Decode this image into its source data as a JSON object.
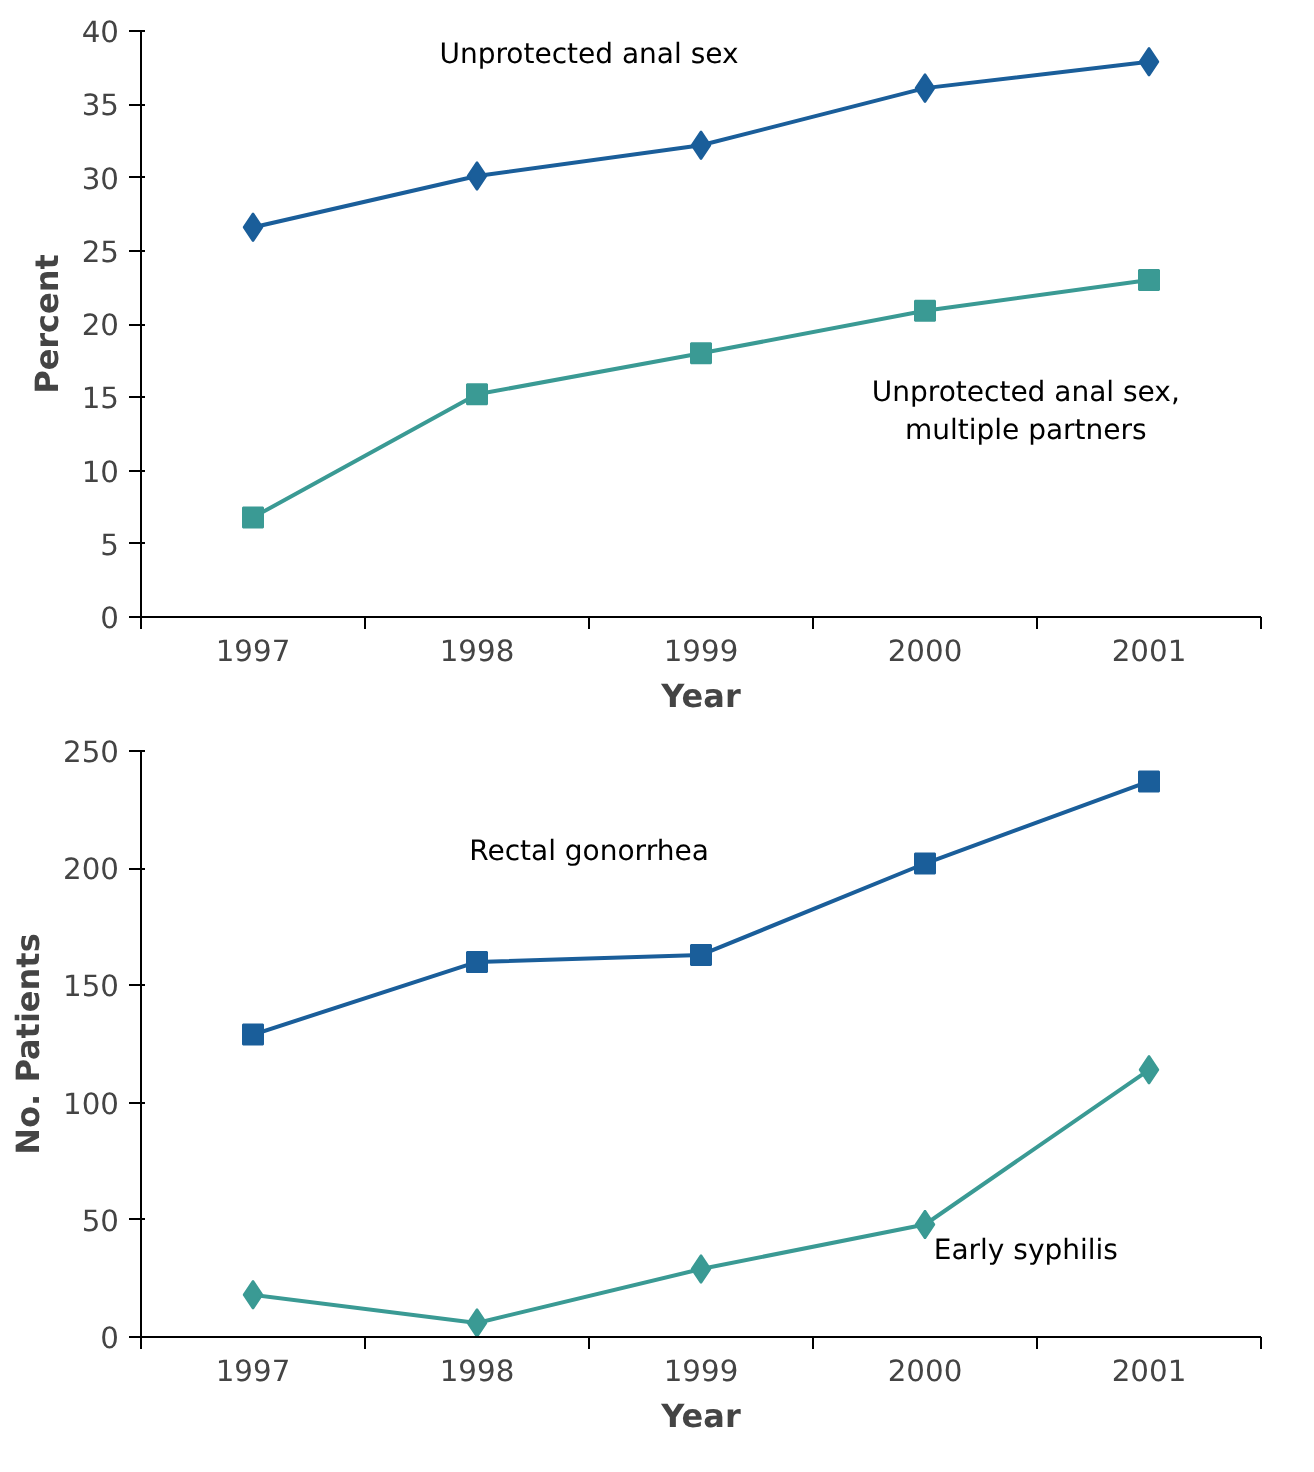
{
  "chart_data": [
    {
      "type": "line",
      "ylabel": "Percent",
      "xlabel": "Year",
      "categories": [
        "1997",
        "1998",
        "1999",
        "2000",
        "2001"
      ],
      "ylim": [
        0,
        40
      ],
      "yticks": [
        0,
        5,
        10,
        15,
        20,
        25,
        30,
        35,
        40
      ],
      "grid": false,
      "series": [
        {
          "name": "Unprotected anal sex",
          "color": "#1a5e9a",
          "marker": "diamond",
          "values": [
            26.6,
            30.1,
            32.2,
            36.1,
            37.9
          ]
        },
        {
          "name": "Unprotected anal sex, multiple partners",
          "color": "#3a9a94",
          "marker": "square",
          "values": [
            6.8,
            15.2,
            18.0,
            20.9,
            23.0
          ]
        }
      ]
    },
    {
      "type": "line",
      "ylabel": "No. Patients",
      "xlabel": "Year",
      "categories": [
        "1997",
        "1998",
        "1999",
        "2000",
        "2001"
      ],
      "ylim": [
        0,
        250
      ],
      "yticks": [
        0,
        50,
        100,
        150,
        200,
        250
      ],
      "grid": false,
      "series": [
        {
          "name": "Rectal gonorrhea",
          "color": "#1a5e9a",
          "marker": "square",
          "values": [
            129,
            160,
            163,
            202,
            237
          ]
        },
        {
          "name": "Early syphilis",
          "color": "#3a9a94",
          "marker": "diamond",
          "values": [
            18,
            6,
            29,
            48,
            114
          ]
        }
      ]
    }
  ]
}
